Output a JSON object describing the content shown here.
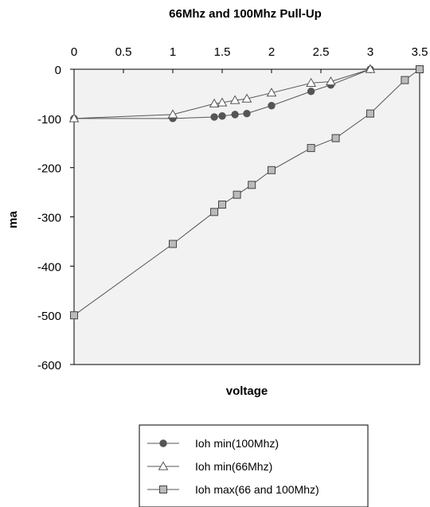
{
  "chart_data": {
    "type": "line",
    "title": "66Mhz and 100Mhz Pull-Up",
    "xlabel": "voltage",
    "ylabel": "ma",
    "xlim": [
      0,
      3.5
    ],
    "ylim": [
      -600,
      0
    ],
    "x_ticks": [
      "0",
      "0.5",
      "1",
      "1.5",
      "2",
      "2.5",
      "3",
      "3.5"
    ],
    "y_ticks": [
      "0",
      "-100",
      "-200",
      "-300",
      "-400",
      "-500",
      "-600"
    ],
    "x_axis_position": "top",
    "grid": false,
    "legend_position": "bottom",
    "series": [
      {
        "name": "Ioh min(100Mhz)",
        "marker": "circle",
        "color": "#555555",
        "x": [
          0,
          1,
          1.42,
          1.5,
          1.63,
          1.75,
          2,
          2.4,
          2.6,
          3
        ],
        "y": [
          -100,
          -100,
          -97,
          -95,
          -92,
          -90,
          -74,
          -45,
          -32,
          0
        ]
      },
      {
        "name": "Ioh min(66Mhz)",
        "marker": "triangle",
        "color": "#ffffff",
        "x": [
          0,
          1,
          1.42,
          1.5,
          1.63,
          1.75,
          2,
          2.4,
          2.6,
          3
        ],
        "y": [
          -100,
          -92,
          -70,
          -68,
          -63,
          -60,
          -48,
          -28,
          -25,
          0
        ]
      },
      {
        "name": "Ioh max(66 and 100Mhz)",
        "marker": "square",
        "color": "#bbbbbb",
        "x": [
          0,
          1,
          1.42,
          1.5,
          1.65,
          1.8,
          2,
          2.4,
          2.65,
          3,
          3.35,
          3.5
        ],
        "y": [
          -500,
          -355,
          -290,
          -275,
          -255,
          -235,
          -205,
          -160,
          -140,
          -90,
          -22,
          0
        ]
      }
    ]
  },
  "colors": {
    "plot_background": "#f2f2f2",
    "line": "#555555",
    "axis": "#000000"
  }
}
